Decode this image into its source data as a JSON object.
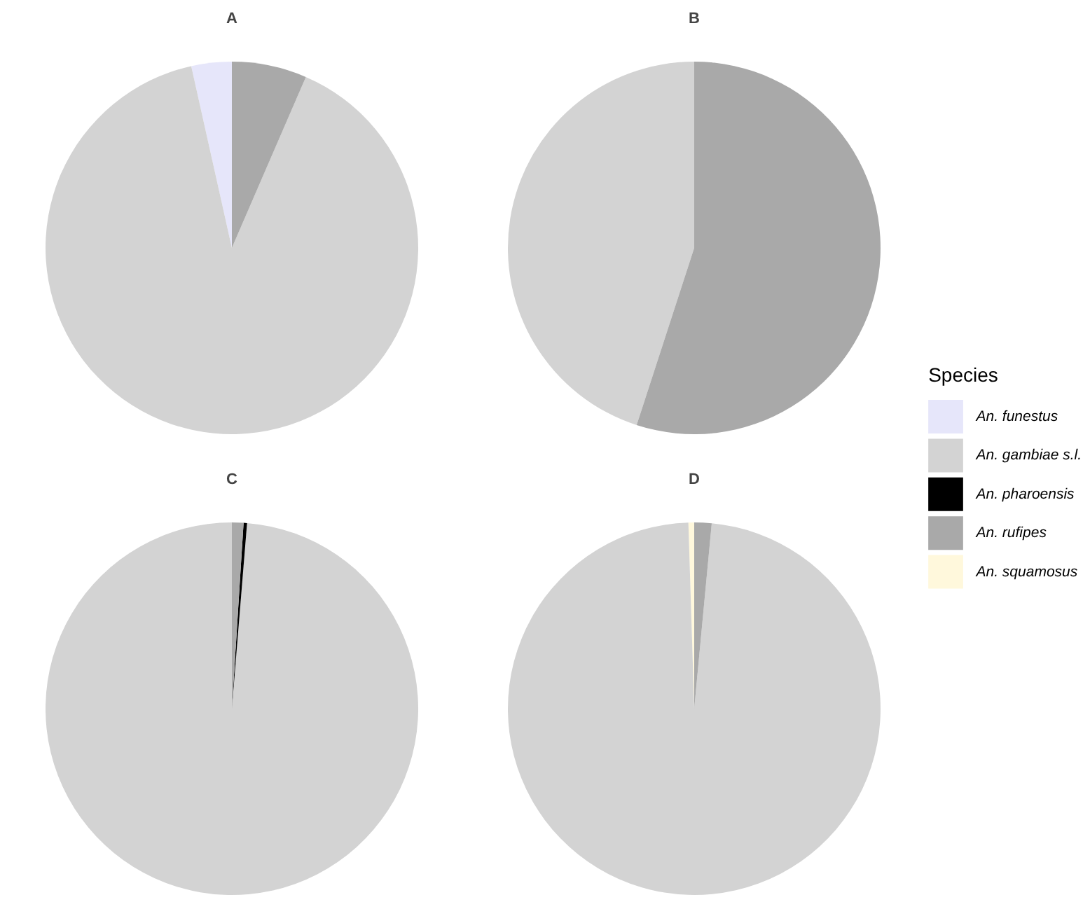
{
  "chart_data": [
    {
      "type": "pie",
      "title": "A",
      "categories": [
        "An. funestus",
        "An. gambiae s.l.",
        "An. pharoensis",
        "An. rufipes",
        "An. squamosus"
      ],
      "values": [
        3.5,
        90,
        0,
        6.5,
        0
      ],
      "colors": [
        "#e6e6fa",
        "#d3d3d3",
        "#000000",
        "#a9a9a9",
        "#fff8dc"
      ],
      "legend": "right",
      "legend_title": "Species"
    },
    {
      "type": "pie",
      "title": "B",
      "categories": [
        null,
        null
      ],
      "values": [
        45,
        55
      ],
      "colors": [
        "#d3d3d3",
        "#a9a9a9"
      ]
    },
    {
      "type": "pie",
      "title": "C",
      "categories": [
        null,
        null,
        null
      ],
      "values": [
        98.7,
        0.3,
        1
      ],
      "colors": [
        "#d3d3d3",
        "#000000",
        "#a9a9a9"
      ]
    },
    {
      "type": "pie",
      "title": "D",
      "categories": [
        null,
        null,
        null
      ],
      "values": [
        0.5,
        98,
        1.5
      ],
      "colors": [
        "#fff8dc",
        "#d3d3d3",
        "#a9a9a9"
      ]
    }
  ]
}
